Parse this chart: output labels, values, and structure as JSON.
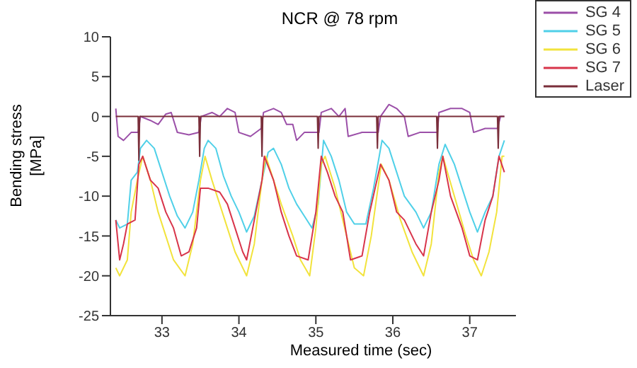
{
  "chart_data": {
    "type": "line",
    "title": "NCR @ 78 rpm",
    "xlabel": "Measured time (sec)",
    "ylabel": "Bending stress [MPa]",
    "xlim": [
      32.33,
      37.6
    ],
    "xticks": [
      33,
      34,
      35,
      36,
      37
    ],
    "ylim": [
      -25,
      10
    ],
    "yticks": [
      -25,
      -20,
      -15,
      -10,
      -5,
      0,
      5,
      10
    ],
    "legend": "top right",
    "marker": "none",
    "line_style": "solid",
    "series": [
      {
        "name": "SG 4",
        "color": "#9b4fa8",
        "x": [
          32.4,
          32.43,
          32.5,
          32.6,
          32.69,
          32.72,
          32.85,
          32.95,
          33.05,
          33.12,
          33.2,
          33.35,
          33.48,
          33.51,
          33.65,
          33.75,
          33.85,
          33.95,
          34.0,
          34.15,
          34.29,
          34.32,
          34.45,
          34.55,
          34.62,
          34.7,
          34.75,
          34.85,
          35.04,
          35.07,
          35.2,
          35.3,
          35.38,
          35.42,
          35.6,
          35.81,
          35.84,
          35.95,
          36.05,
          36.15,
          36.2,
          36.35,
          36.58,
          36.6,
          36.75,
          36.9,
          37.0,
          37.05,
          37.2,
          37.36,
          37.4,
          37.45
        ],
        "values": [
          1,
          -2.5,
          -3,
          -2,
          -2,
          0,
          -0.5,
          -1,
          0.3,
          0.5,
          -2,
          -2.3,
          -2,
          0,
          0.5,
          0,
          1,
          0.5,
          -2,
          -2.5,
          -1.5,
          0.5,
          1,
          0.5,
          -1,
          -1,
          -3,
          -2,
          -2,
          0.5,
          1,
          0,
          1,
          -2.5,
          -2,
          -2,
          0,
          1.5,
          1,
          0,
          -2.5,
          -2,
          -2,
          0.5,
          1,
          1,
          0.5,
          -2,
          -1.5,
          -1.5,
          0,
          0
        ]
      },
      {
        "name": "SG 5",
        "color": "#4fd0e8",
        "x": [
          32.4,
          32.45,
          32.55,
          32.6,
          32.68,
          32.72,
          32.8,
          32.9,
          33.0,
          33.1,
          33.2,
          33.3,
          33.4,
          33.48,
          33.55,
          33.6,
          33.7,
          33.8,
          33.9,
          34.0,
          34.1,
          34.2,
          34.3,
          34.38,
          34.45,
          34.55,
          34.65,
          34.75,
          34.85,
          34.95,
          35.03,
          35.1,
          35.2,
          35.3,
          35.4,
          35.5,
          35.65,
          35.75,
          35.86,
          35.95,
          36.05,
          36.15,
          36.3,
          36.4,
          36.5,
          36.6,
          36.68,
          36.8,
          36.9,
          37.0,
          37.1,
          37.2,
          37.3,
          37.38,
          37.45
        ],
        "values": [
          -13,
          -14,
          -13.5,
          -8,
          -7,
          -4,
          -3,
          -4,
          -7,
          -10,
          -12.5,
          -14,
          -12,
          -8,
          -4,
          -3,
          -4,
          -7.5,
          -10,
          -12,
          -14.5,
          -12.5,
          -8,
          -4.5,
          -4,
          -6,
          -9,
          -11,
          -12.5,
          -14,
          -11,
          -3,
          -5,
          -8,
          -12,
          -13.5,
          -13.5,
          -9,
          -3,
          -4,
          -7,
          -10,
          -12,
          -14,
          -12,
          -6,
          -3.5,
          -6,
          -9,
          -12,
          -14.5,
          -12,
          -10,
          -5,
          -3
        ]
      },
      {
        "name": "SG 6",
        "color": "#f2e33c",
        "x": [
          32.4,
          32.45,
          32.55,
          32.6,
          32.68,
          32.75,
          32.85,
          32.95,
          33.05,
          33.15,
          33.3,
          33.4,
          33.5,
          33.56,
          33.65,
          33.75,
          33.85,
          33.95,
          34.1,
          34.2,
          34.3,
          34.35,
          34.45,
          34.55,
          34.7,
          34.8,
          34.92,
          35.0,
          35.07,
          35.12,
          35.25,
          35.4,
          35.5,
          35.62,
          35.72,
          35.85,
          35.95,
          36.1,
          36.25,
          36.4,
          36.5,
          36.6,
          36.65,
          36.8,
          36.95,
          37.05,
          37.15,
          37.25,
          37.35,
          37.42,
          37.45
        ],
        "values": [
          -19,
          -20,
          -18,
          -12,
          -8,
          -5,
          -8,
          -12,
          -15,
          -18,
          -20,
          -16,
          -8,
          -5,
          -8,
          -11,
          -14,
          -17,
          -20,
          -16,
          -8,
          -5,
          -8,
          -11,
          -15,
          -18,
          -20,
          -14,
          -6,
          -5,
          -9,
          -15,
          -19,
          -20,
          -15,
          -6,
          -8,
          -13,
          -17,
          -20,
          -16,
          -7,
          -5,
          -10,
          -15,
          -18,
          -20,
          -17,
          -12,
          -5,
          -5
        ]
      },
      {
        "name": "SG 7",
        "color": "#d8344a",
        "x": [
          32.4,
          32.45,
          32.5,
          32.55,
          32.65,
          32.7,
          32.75,
          32.85,
          32.95,
          33.05,
          33.15,
          33.25,
          33.35,
          33.45,
          33.5,
          33.6,
          33.75,
          33.85,
          33.95,
          34.05,
          34.1,
          34.2,
          34.3,
          34.33,
          34.45,
          34.55,
          34.65,
          34.75,
          34.9,
          35.0,
          35.07,
          35.15,
          35.25,
          35.35,
          35.45,
          35.6,
          35.7,
          35.84,
          35.95,
          36.05,
          36.15,
          36.3,
          36.4,
          36.5,
          36.6,
          36.65,
          36.75,
          36.9,
          37.0,
          37.1,
          37.2,
          37.3,
          37.38,
          37.45
        ],
        "values": [
          -13,
          -18,
          -16,
          -13.5,
          -13,
          -6,
          -5,
          -8,
          -9,
          -12,
          -14,
          -17.5,
          -17,
          -14,
          -9,
          -9,
          -9.5,
          -11,
          -14,
          -17,
          -18,
          -13,
          -8,
          -5,
          -8,
          -12,
          -15,
          -17.5,
          -18,
          -12,
          -5,
          -7,
          -10,
          -12,
          -18,
          -17.5,
          -12,
          -6,
          -8,
          -12,
          -13,
          -16,
          -17.5,
          -12,
          -8,
          -5,
          -10,
          -14,
          -17.5,
          -18,
          -13,
          -10,
          -5,
          -7
        ]
      },
      {
        "name": "Laser",
        "color": "#7a2e3a",
        "x": [
          32.4,
          32.69,
          32.7,
          32.71,
          33.48,
          33.49,
          33.5,
          34.29,
          34.3,
          34.31,
          35.02,
          35.03,
          35.04,
          35.79,
          35.8,
          35.81,
          36.57,
          36.58,
          36.59,
          37.36,
          37.37,
          37.38,
          37.45
        ],
        "values": [
          0,
          0,
          -5.5,
          0,
          0,
          -5,
          0,
          0,
          -5,
          0,
          0,
          -4,
          0,
          0,
          -4,
          0,
          0,
          -4,
          0,
          0,
          -4,
          0,
          0
        ]
      }
    ]
  }
}
